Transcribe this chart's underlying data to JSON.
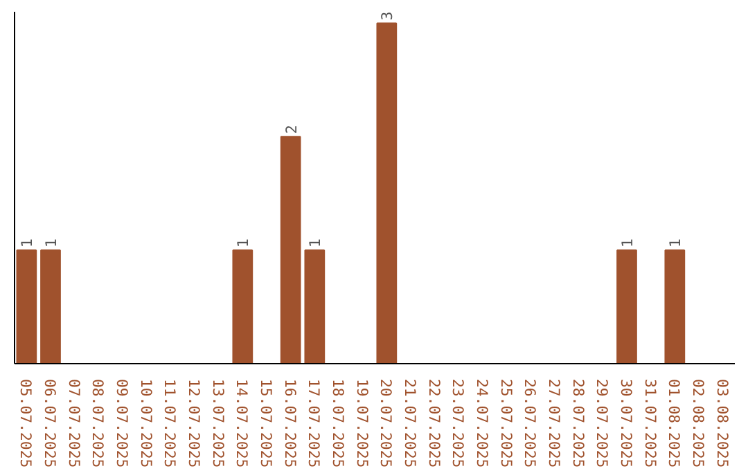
{
  "chart_data": {
    "type": "bar",
    "categories": [
      "05.07.2025",
      "06.07.2025",
      "07.07.2025",
      "08.07.2025",
      "09.07.2025",
      "10.07.2025",
      "11.07.2025",
      "12.07.2025",
      "13.07.2025",
      "14.07.2025",
      "15.07.2025",
      "16.07.2025",
      "17.07.2025",
      "18.07.2025",
      "19.07.2025",
      "20.07.2025",
      "21.07.2025",
      "22.07.2025",
      "23.07.2025",
      "24.07.2025",
      "25.07.2025",
      "26.07.2025",
      "27.07.2025",
      "28.07.2025",
      "29.07.2025",
      "30.07.2025",
      "31.07.2025",
      "01.08.2025",
      "02.08.2025",
      "03.08.2025"
    ],
    "values": [
      1,
      1,
      0,
      0,
      0,
      0,
      0,
      0,
      0,
      1,
      0,
      2,
      1,
      0,
      0,
      3,
      0,
      0,
      0,
      0,
      0,
      0,
      0,
      0,
      0,
      1,
      0,
      1,
      0,
      0
    ],
    "value_labels": [
      "1",
      "1",
      null,
      null,
      null,
      null,
      null,
      null,
      null,
      "1",
      null,
      "2",
      "1",
      null,
      null,
      "3",
      null,
      null,
      null,
      null,
      null,
      null,
      null,
      null,
      null,
      "1",
      null,
      "1",
      null,
      null
    ],
    "color": "#a0522d",
    "ylim": [
      0,
      3.1
    ],
    "tick_labels": "x",
    "grid": false
  }
}
